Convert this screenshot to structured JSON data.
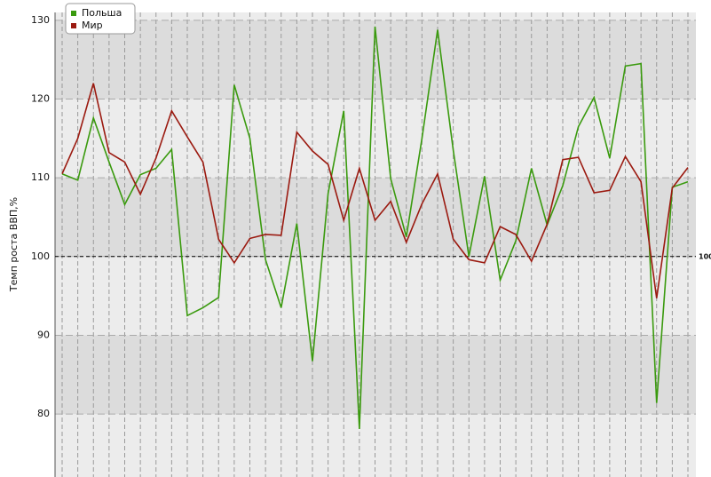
{
  "chart_data": {
    "type": "line",
    "y_label": "Темп роста ВВП,%",
    "categories": [
      null,
      null,
      null,
      null,
      null,
      null,
      null,
      null,
      null,
      null,
      null,
      null,
      null,
      null,
      null,
      null,
      null,
      null,
      null,
      null,
      null,
      null,
      null,
      null,
      null,
      null,
      null,
      null,
      null,
      null,
      null,
      null,
      null,
      null,
      null,
      null,
      null,
      null,
      null,
      null,
      null
    ],
    "series": [
      {
        "name": "Польша",
        "color": "#3a9a0e",
        "values": [
          110.5,
          109.7,
          117.6,
          112,
          106.6,
          110.4,
          111.2,
          113.6,
          92.5,
          93.5,
          94.8,
          121.8,
          115,
          99.6,
          93.5,
          104.2,
          86.7,
          108,
          118.5,
          78.1,
          129.2,
          109.9,
          102.5,
          115,
          128.8,
          113.5,
          100,
          110.2,
          97,
          102,
          111.2,
          104,
          109,
          116.5,
          120.2,
          112.5,
          124.2,
          124.5,
          81.4,
          108.8,
          109.5
        ]
      },
      {
        "name": "Мир",
        "color": "#9b1a10",
        "values": [
          110.5,
          115,
          122,
          113.2,
          112,
          107.9,
          112.5,
          118.5,
          115.2,
          112,
          102.2,
          99.2,
          102.3,
          102.8,
          102.7,
          115.8,
          113.4,
          111.7,
          104.6,
          111.2,
          104.6,
          107,
          101.8,
          106.7,
          110.5,
          102.2,
          99.6,
          99.2,
          103.8,
          102.8,
          99.4,
          104.1,
          112.3,
          112.6,
          108.1,
          108.4,
          112.7,
          109.5,
          94.7,
          108.7,
          111.3
        ]
      }
    ],
    "ylim": [
      72,
      131
    ],
    "yticks": [
      80,
      90,
      100,
      110,
      120,
      130
    ],
    "grid": true,
    "reference_line": 100,
    "legend": "top-left"
  }
}
